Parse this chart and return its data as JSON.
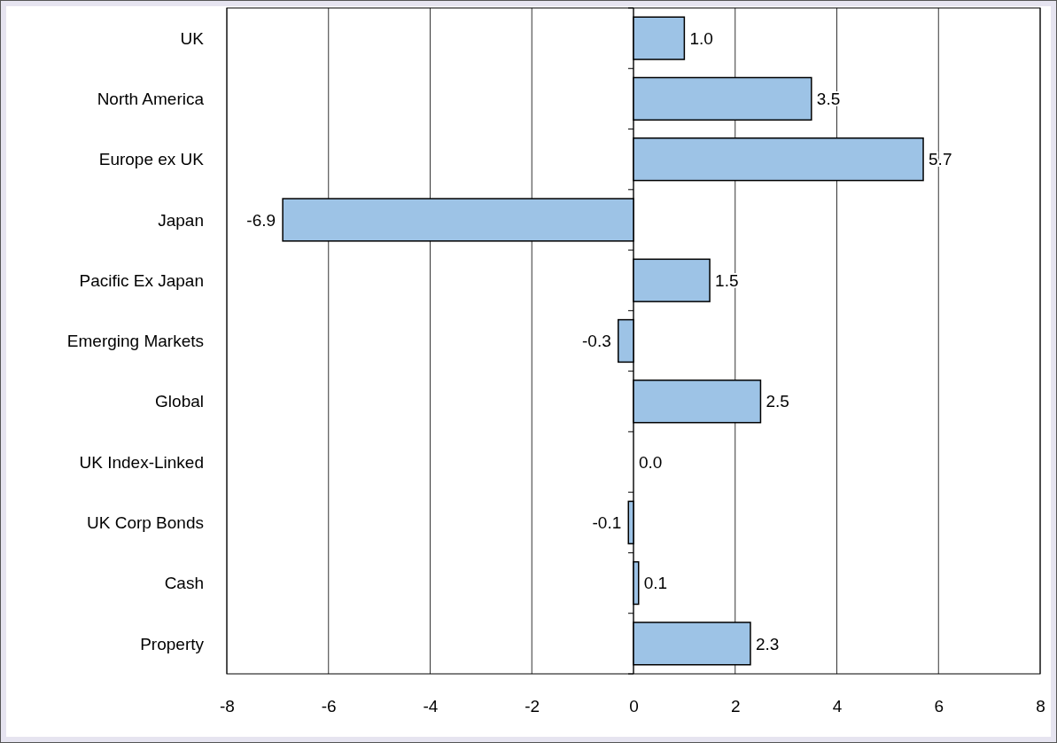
{
  "chart_data": {
    "type": "bar",
    "orientation": "horizontal",
    "categories": [
      "UK",
      "North America",
      "Europe ex UK",
      "Japan",
      "Pacific Ex Japan",
      "Emerging Markets",
      "Global",
      "UK Index-Linked",
      "UK Corp Bonds",
      "Cash",
      "Property"
    ],
    "values": [
      1.0,
      3.5,
      5.7,
      -6.9,
      1.5,
      -0.3,
      2.5,
      0.0,
      -0.1,
      0.1,
      2.3
    ],
    "value_labels": [
      "1.0",
      "3.5",
      "5.7",
      "-6.9",
      "1.5",
      "-0.3",
      "2.5",
      "0.0",
      "-0.1",
      "0.1",
      "2.3"
    ],
    "color": "#9dc3e6",
    "xlim": [
      -8,
      8
    ],
    "xticks": [
      -8,
      -6,
      -4,
      -2,
      0,
      2,
      4,
      6,
      8
    ],
    "grid": "x"
  }
}
